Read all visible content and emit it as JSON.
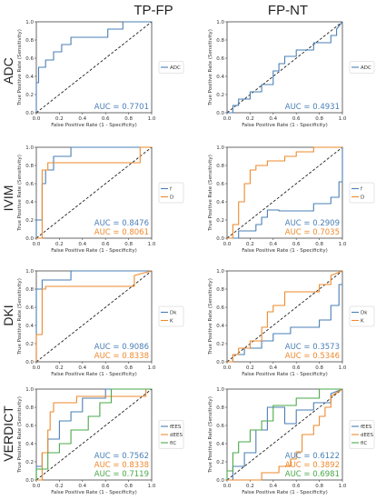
{
  "column_titles": [
    "TP-FP",
    "FP-NT"
  ],
  "row_titles": [
    "ADC",
    "IVIM",
    "DKI",
    "VERDICT"
  ],
  "colors": {
    "blue": "#4a7fb6",
    "orange": "#ee8a2d",
    "green": "#4aa84a",
    "diagonal": "#222222",
    "axis": "#444444"
  },
  "chart_data": [
    {
      "type": "line",
      "row": "ADC",
      "column": "TP-FP",
      "xlabel": "False Positive Rate (1 - Specificity)",
      "ylabel": "True Positive Rate (Sensitivity)",
      "xlim": [
        0,
        1
      ],
      "ylim": [
        0,
        1
      ],
      "xticks": [
        "0.0",
        "0.2",
        "0.4",
        "0.6",
        "0.8",
        "1.0"
      ],
      "yticks": [
        "0.0",
        "0.2",
        "0.4",
        "0.6",
        "0.8",
        "1.0"
      ],
      "legend_position": "right",
      "series": [
        {
          "name": "ADC",
          "color": "#4a7fb6",
          "auc_label": "AUC = 0.7701",
          "x": [
            0,
            0,
            0.02,
            0.02,
            0.08,
            0.08,
            0.15,
            0.15,
            0.22,
            0.22,
            0.3,
            0.3,
            0.6,
            0.6,
            0.62,
            0.62,
            0.75,
            0.75,
            1
          ],
          "y": [
            0,
            0.33,
            0.33,
            0.5,
            0.5,
            0.58,
            0.58,
            0.67,
            0.67,
            0.75,
            0.75,
            0.83,
            0.83,
            0.83,
            0.83,
            0.92,
            0.92,
            1,
            1
          ]
        }
      ]
    },
    {
      "type": "line",
      "row": "ADC",
      "column": "FP-NT",
      "xlabel": "False Positive Rate (1 - Specificity)",
      "ylabel": "True Positive Rate (Sensitivity)",
      "xlim": [
        0,
        1
      ],
      "ylim": [
        0,
        1
      ],
      "xticks": [
        "0.0",
        "0.2",
        "0.4",
        "0.6",
        "0.8",
        "1.0"
      ],
      "yticks": [
        "0.0",
        "0.2",
        "0.4",
        "0.6",
        "0.8",
        "1.0"
      ],
      "legend_position": "right",
      "series": [
        {
          "name": "ADC",
          "color": "#4a7fb6",
          "auc_label": "AUC = 0.4931",
          "x": [
            0,
            0.05,
            0.05,
            0.1,
            0.1,
            0.2,
            0.2,
            0.3,
            0.3,
            0.4,
            0.4,
            0.45,
            0.45,
            0.5,
            0.5,
            0.6,
            0.6,
            0.75,
            0.75,
            0.9,
            0.9,
            0.95,
            0.95,
            1
          ],
          "y": [
            0,
            0,
            0.08,
            0.08,
            0.15,
            0.15,
            0.23,
            0.23,
            0.31,
            0.31,
            0.46,
            0.46,
            0.54,
            0.54,
            0.62,
            0.62,
            0.69,
            0.69,
            0.77,
            0.77,
            0.85,
            0.85,
            0.92,
            1
          ]
        }
      ]
    },
    {
      "type": "line",
      "row": "IVIM",
      "column": "TP-FP",
      "xlabel": "False Positive Rate (1 - Specificity)",
      "ylabel": "True Positive Rate (Sensitivity)",
      "xlim": [
        0,
        1
      ],
      "ylim": [
        0,
        1
      ],
      "xticks": [
        "0.0",
        "0.2",
        "0.4",
        "0.6",
        "0.8",
        "1.0"
      ],
      "yticks": [
        "0.0",
        "0.2",
        "0.4",
        "0.6",
        "0.8",
        "1.0"
      ],
      "legend_position": "right",
      "series": [
        {
          "name": "f",
          "color": "#4a7fb6",
          "auc_label": "AUC = 0.8476",
          "x": [
            0,
            0,
            0.05,
            0.05,
            0.08,
            0.08,
            0.15,
            0.15,
            0.3,
            0.3,
            1
          ],
          "y": [
            0,
            0.2,
            0.2,
            0.6,
            0.6,
            0.75,
            0.75,
            0.9,
            0.9,
            1,
            1
          ]
        },
        {
          "name": "D",
          "color": "#ee8a2d",
          "auc_label": "AUC = 0.8061",
          "x": [
            0,
            0.05,
            0.05,
            0.1,
            0.1,
            0.3,
            0.3,
            0.9,
            0.9,
            1
          ],
          "y": [
            0,
            0,
            0.75,
            0.75,
            0.83,
            0.83,
            0.83,
            0.83,
            1,
            1
          ]
        }
      ]
    },
    {
      "type": "line",
      "row": "IVIM",
      "column": "FP-NT",
      "xlabel": "False Positive Rate (1 - Specificity)",
      "ylabel": "True Positive Rate (Sensitivity)",
      "xlim": [
        0,
        1
      ],
      "ylim": [
        0,
        1
      ],
      "xticks": [
        "0.0",
        "0.2",
        "0.4",
        "0.6",
        "0.8",
        "1.0"
      ],
      "yticks": [
        "0.0",
        "0.2",
        "0.4",
        "0.6",
        "0.8",
        "1.0"
      ],
      "legend_position": "right",
      "series": [
        {
          "name": "f",
          "color": "#4a7fb6",
          "auc_label": "AUC = 0.2909",
          "x": [
            0,
            0.1,
            0.1,
            0.25,
            0.25,
            0.3,
            0.3,
            0.35,
            0.35,
            0.45,
            0.45,
            0.75,
            0.75,
            0.9,
            0.9,
            0.97,
            0.97,
            1,
            1
          ],
          "y": [
            0,
            0,
            0.08,
            0.08,
            0.15,
            0.15,
            0.23,
            0.23,
            0.31,
            0.31,
            0.3,
            0.3,
            0.38,
            0.38,
            0.45,
            0.45,
            0.62,
            0.62,
            1
          ]
        },
        {
          "name": "D",
          "color": "#ee8a2d",
          "auc_label": "AUC = 0.7035",
          "x": [
            0,
            0.05,
            0.05,
            0.1,
            0.1,
            0.15,
            0.15,
            0.2,
            0.2,
            0.25,
            0.25,
            0.35,
            0.35,
            0.5,
            0.5,
            0.6,
            0.6,
            0.75,
            0.75,
            0.8,
            0.8,
            1
          ],
          "y": [
            0,
            0,
            0.15,
            0.15,
            0.4,
            0.4,
            0.6,
            0.6,
            0.75,
            0.75,
            0.8,
            0.8,
            0.85,
            0.85,
            0.9,
            0.9,
            0.95,
            0.95,
            1,
            1,
            1,
            1
          ]
        }
      ]
    },
    {
      "type": "line",
      "row": "DKI",
      "column": "TP-FP",
      "xlabel": "False Positive Rate (1 - Specificity)",
      "ylabel": "True Positive Rate (Sensitivity)",
      "xlim": [
        0,
        1
      ],
      "ylim": [
        0,
        1
      ],
      "xticks": [
        "0.0",
        "0.2",
        "0.4",
        "0.6",
        "0.8",
        "1.0"
      ],
      "yticks": [
        "0.0",
        "0.2",
        "0.4",
        "0.6",
        "0.8",
        "1.0"
      ],
      "legend_position": "right",
      "series": [
        {
          "name": "Dk",
          "color": "#4a7fb6",
          "auc_label": "AUC = 0.9086",
          "x": [
            0,
            0,
            0.05,
            0.05,
            0.3,
            0.3,
            0.9,
            0.9,
            1
          ],
          "y": [
            0,
            0.8,
            0.8,
            0.9,
            0.9,
            1,
            1,
            1,
            1
          ]
        },
        {
          "name": "K",
          "color": "#ee8a2d",
          "auc_label": "AUC = 0.8338",
          "x": [
            0,
            0,
            0.05,
            0.05,
            0.08,
            0.08,
            0.85,
            0.85,
            1
          ],
          "y": [
            0,
            0.3,
            0.3,
            0.8,
            0.8,
            0.83,
            0.83,
            0.95,
            1
          ]
        }
      ]
    },
    {
      "type": "line",
      "row": "DKI",
      "column": "FP-NT",
      "xlabel": "False Positive Rate (1 - Specificity)",
      "ylabel": "True Positive Rate (Sensitivity)",
      "xlim": [
        0,
        1
      ],
      "ylim": [
        0,
        1
      ],
      "xticks": [
        "0.0",
        "0.2",
        "0.4",
        "0.6",
        "0.8",
        "1.0"
      ],
      "yticks": [
        "0.0",
        "0.2",
        "0.4",
        "0.6",
        "0.8",
        "1.0"
      ],
      "legend_position": "right",
      "series": [
        {
          "name": "Dk",
          "color": "#4a7fb6",
          "auc_label": "AUC = 0.3573",
          "x": [
            0,
            0.05,
            0.05,
            0.15,
            0.15,
            0.3,
            0.3,
            0.4,
            0.4,
            0.55,
            0.55,
            0.8,
            0.8,
            0.9,
            0.9,
            0.97,
            0.97,
            1
          ],
          "y": [
            0,
            0,
            0.08,
            0.08,
            0.15,
            0.15,
            0.23,
            0.23,
            0.31,
            0.31,
            0.38,
            0.38,
            0.46,
            0.46,
            0.62,
            0.62,
            0.85,
            0.85
          ]
        },
        {
          "name": "K",
          "color": "#ee8a2d",
          "auc_label": "AUC = 0.5346",
          "x": [
            0,
            0.05,
            0.05,
            0.1,
            0.1,
            0.2,
            0.2,
            0.3,
            0.3,
            0.35,
            0.35,
            0.4,
            0.4,
            0.5,
            0.5,
            0.55,
            0.55,
            0.8,
            0.8,
            0.9,
            0.9,
            1
          ],
          "y": [
            0,
            0,
            0.08,
            0.08,
            0.15,
            0.15,
            0.23,
            0.23,
            0.38,
            0.38,
            0.55,
            0.55,
            0.62,
            0.62,
            0.77,
            0.77,
            0.77,
            0.77,
            0.85,
            0.85,
            0.95,
            1
          ]
        }
      ]
    },
    {
      "type": "line",
      "row": "VERDICT",
      "column": "TP-FP",
      "xlabel": "False Positive Rate (1 - Specificity)",
      "ylabel": "True Positive Rate (Sensitivity)",
      "xlim": [
        0,
        1
      ],
      "ylim": [
        0,
        1
      ],
      "xticks": [
        "0.0",
        "0.2",
        "0.4",
        "0.6",
        "0.8",
        "1.0"
      ],
      "yticks": [
        "0.0",
        "0.2",
        "0.4",
        "0.6",
        "0.8",
        "1.0"
      ],
      "legend_position": "right",
      "series": [
        {
          "name": "fEES",
          "color": "#4a7fb6",
          "auc_label": "AUC = 0.7562",
          "x": [
            0,
            0,
            0.05,
            0.05,
            0.1,
            0.1,
            0.2,
            0.2,
            0.3,
            0.3,
            0.4,
            0.4,
            0.6,
            0.6,
            1
          ],
          "y": [
            0,
            0.15,
            0.15,
            0.3,
            0.3,
            0.45,
            0.45,
            0.65,
            0.65,
            0.75,
            0.75,
            0.9,
            0.9,
            1,
            1
          ]
        },
        {
          "name": "dEES",
          "color": "#ee8a2d",
          "auc_label": "AUC = 0.8338",
          "x": [
            0,
            0.05,
            0.05,
            0.1,
            0.1,
            0.12,
            0.12,
            0.15,
            0.15,
            0.35,
            0.35,
            0.95,
            0.95,
            1
          ],
          "y": [
            0,
            0,
            0.3,
            0.3,
            0.55,
            0.55,
            0.75,
            0.75,
            0.85,
            0.85,
            0.92,
            0.92,
            1,
            1
          ]
        },
        {
          "name": "fIC",
          "color": "#4aa84a",
          "auc_label": "AUC = 0.7119",
          "x": [
            0,
            0,
            0.1,
            0.1,
            0.2,
            0.2,
            0.3,
            0.3,
            0.45,
            0.45,
            0.55,
            0.55,
            0.65,
            0.65,
            1
          ],
          "y": [
            0,
            0.12,
            0.12,
            0.3,
            0.3,
            0.4,
            0.4,
            0.55,
            0.55,
            0.7,
            0.7,
            0.85,
            0.85,
            1,
            1
          ]
        }
      ]
    },
    {
      "type": "line",
      "row": "VERDICT",
      "column": "FP-NT",
      "xlabel": "False Positive Rate (1 - Specificity)",
      "ylabel": "True Positive Rate (Sensitivity)",
      "xlim": [
        0,
        1
      ],
      "ylim": [
        0,
        1
      ],
      "xticks": [
        "0.0",
        "0.2",
        "0.4",
        "0.6",
        "0.8",
        "1.0"
      ],
      "yticks": [
        "0.0",
        "0.2",
        "0.4",
        "0.6",
        "0.8",
        "1.0"
      ],
      "legend_position": "right",
      "series": [
        {
          "name": "fEES",
          "color": "#4a7fb6",
          "auc_label": "AUC = 0.6122",
          "x": [
            0,
            0.05,
            0.05,
            0.15,
            0.15,
            0.25,
            0.25,
            0.35,
            0.35,
            0.5,
            0.5,
            0.6,
            0.6,
            0.75,
            0.75,
            0.9,
            0.9,
            1
          ],
          "y": [
            0,
            0,
            0.15,
            0.15,
            0.3,
            0.3,
            0.55,
            0.55,
            0.8,
            0.8,
            0.62,
            0.62,
            0.77,
            0.77,
            0.85,
            0.85,
            0.95,
            1
          ]
        },
        {
          "name": "dEES",
          "color": "#ee8a2d",
          "auc_label": "AUC = 0.3892",
          "x": [
            0,
            0.3,
            0.3,
            0.45,
            0.45,
            0.55,
            0.55,
            0.6,
            0.6,
            0.65,
            0.65,
            0.75,
            0.75,
            0.8,
            0.8,
            0.85,
            0.85,
            0.9,
            0.9,
            1
          ],
          "y": [
            0,
            0,
            0.08,
            0.08,
            0.15,
            0.15,
            0.23,
            0.23,
            0.31,
            0.31,
            0.5,
            0.5,
            0.6,
            0.6,
            0.7,
            0.7,
            0.8,
            0.8,
            0.92,
            1
          ]
        },
        {
          "name": "fIC",
          "color": "#4aa84a",
          "auc_label": "AUC = 0.6981",
          "x": [
            0,
            0,
            0.05,
            0.05,
            0.1,
            0.1,
            0.2,
            0.2,
            0.3,
            0.3,
            0.4,
            0.4,
            0.6,
            0.6,
            0.8,
            0.8,
            1
          ],
          "y": [
            0,
            0.1,
            0.1,
            0.3,
            0.3,
            0.42,
            0.42,
            0.55,
            0.55,
            0.65,
            0.65,
            0.82,
            0.82,
            0.9,
            0.9,
            1,
            1
          ]
        }
      ]
    }
  ]
}
